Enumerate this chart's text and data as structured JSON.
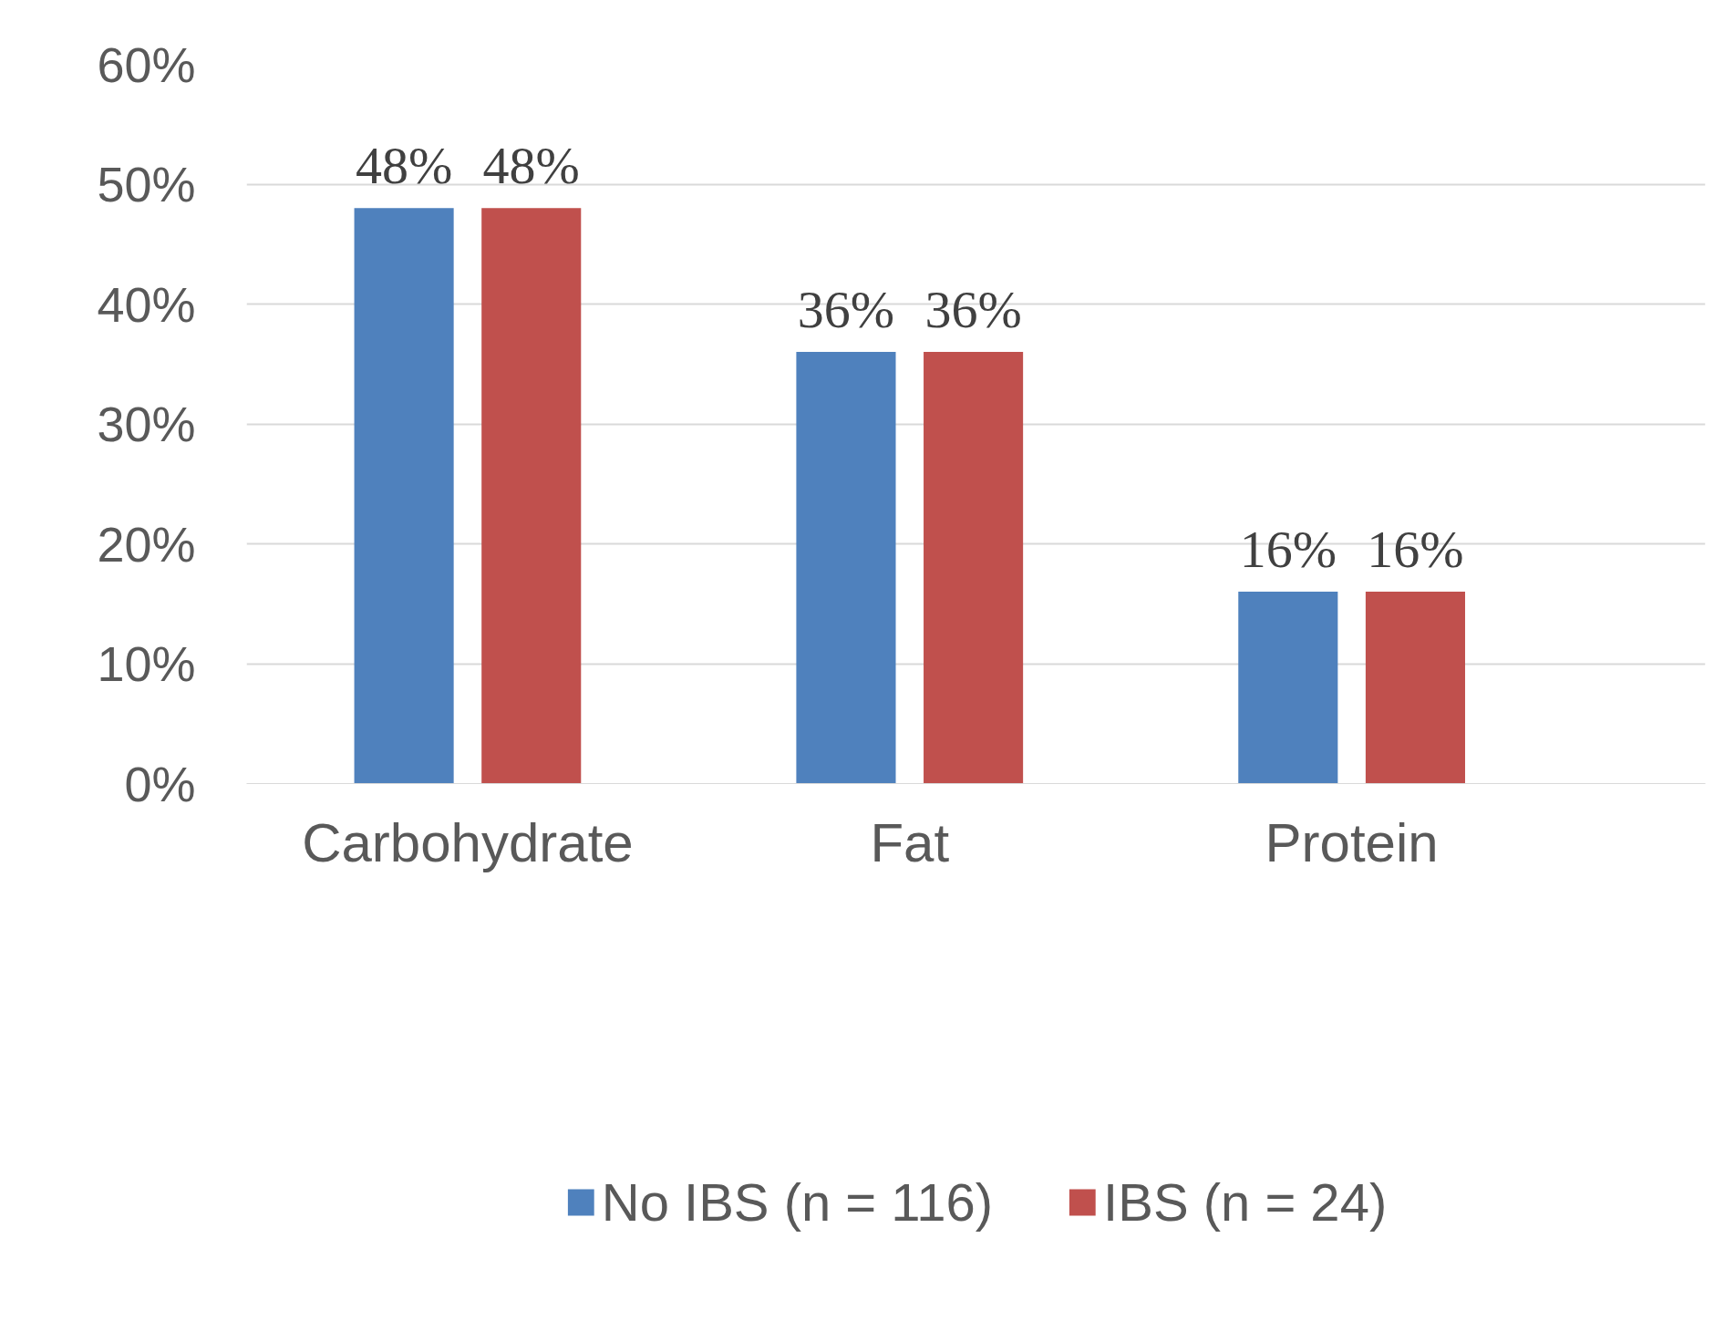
{
  "chart_data": {
    "type": "bar",
    "categories": [
      "Carbohydrate",
      "Fat",
      "Protein"
    ],
    "series": [
      {
        "name": "No IBS (n = 116)",
        "color": "#4f81bd",
        "values": [
          48,
          36,
          16
        ],
        "value_labels": [
          "48%",
          "36%",
          "16%"
        ]
      },
      {
        "name": "IBS (n = 24)",
        "color": "#c0504d",
        "values": [
          48,
          36,
          16
        ],
        "value_labels": [
          "48%",
          "36%",
          "16%"
        ]
      }
    ],
    "ylim": [
      0,
      60
    ],
    "yticks": [
      {
        "value": 0,
        "label": "0%"
      },
      {
        "value": 10,
        "label": "10%"
      },
      {
        "value": 20,
        "label": "20%"
      },
      {
        "value": 30,
        "label": "30%"
      },
      {
        "value": 40,
        "label": "40%"
      },
      {
        "value": 50,
        "label": "50%"
      },
      {
        "value": 60,
        "label": "60%"
      }
    ],
    "grid": "y",
    "legend": "bottom"
  }
}
